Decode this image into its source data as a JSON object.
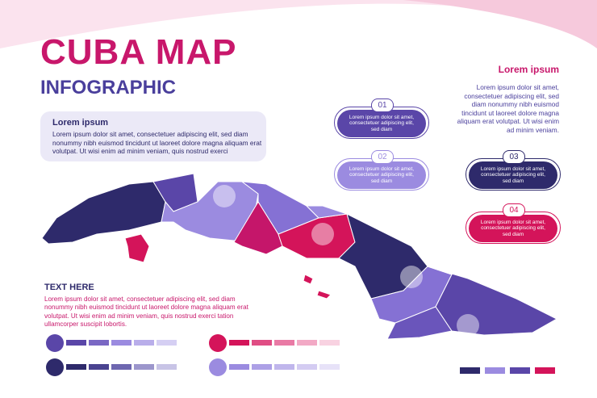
{
  "header": {
    "title": "CUBA MAP",
    "subtitle": "INFOGRAPHIC"
  },
  "intro": {
    "heading": "Lorem ipsum",
    "lines": [
      "Lorem ipsum dolor sit amet, consectetuer adipiscing elit, sed diam",
      "nonummy nibh euismod tincidunt ut laoreet dolore magna aliquam erat",
      "volutpat. Ut wisi enim ad minim veniam, quis nostrud exerci"
    ]
  },
  "side_note": {
    "heading": "Lorem ipsum",
    "lines": [
      "Lorem ipsum dolor sit amet,",
      "consectetuer adipiscing elit, sed",
      "diam nonummy nibh euismod",
      "tincidunt ut laoreet dolore magna",
      "aliquam erat volutpat. Ut wisi enim",
      "ad minim veniam."
    ]
  },
  "callouts": [
    {
      "number": "01",
      "lines": [
        "Lorem ipsum dolor sit amet,",
        "consectetuer adipiscing elit,",
        "sed diam"
      ]
    },
    {
      "number": "02",
      "lines": [
        "Lorem ipsum dolor sit amet,",
        "consectetuer adipiscing elit,",
        "sed diam"
      ]
    },
    {
      "number": "03",
      "lines": [
        "Lorem ipsum dolor sit amet,",
        "consectetuer adipiscing elit,",
        "sed diam"
      ]
    },
    {
      "number": "04",
      "lines": [
        "Lorem ipsum dolor sit amet,",
        "consectetuer adipiscing elit,",
        "sed diam"
      ]
    }
  ],
  "text_block": {
    "heading": "TEXT HERE",
    "lines": [
      "Lorem ipsum dolor sit amet, consectetuer adipiscing elit, sed diam",
      "nonummy nibh euismod tincidunt ut laoreet dolore magna aliquam erat",
      "volutpat. Ut wisi enim ad minim veniam, quis nostrud exerci tation",
      "ullamcorper suscipit lobortis."
    ]
  }
}
